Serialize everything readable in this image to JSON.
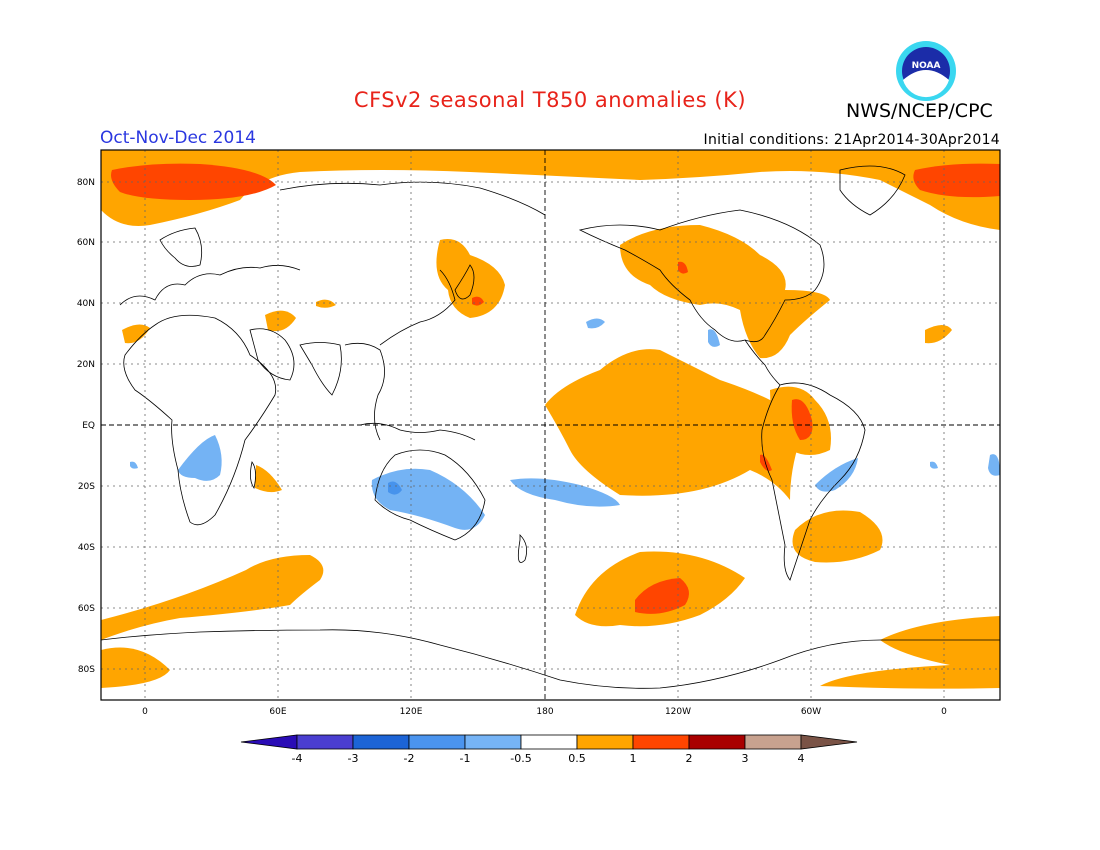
{
  "header": {
    "title": "CFSv2 seasonal T850 anomalies (K)",
    "organization": "NWS/NCEP/CPC",
    "logo_text": "NOAA",
    "period": "Oct-Nov-Dec 2014",
    "initial_conditions": "Initial conditions: 21Apr2014-30Apr2014"
  },
  "map": {
    "lat_labels": [
      "80N",
      "60N",
      "40N",
      "20N",
      "EQ",
      "20S",
      "40S",
      "60S",
      "80S"
    ],
    "lon_labels": [
      "0",
      "60E",
      "120E",
      "180",
      "120W",
      "60W",
      "0"
    ],
    "colors": {
      "land_outline": "#000000",
      "frame": "#000000",
      "pos_1": "#ffa500",
      "pos_2": "#ff4500",
      "neg_1": "#74b3f4",
      "neg_2": "#4793ec"
    }
  },
  "colorbar": {
    "labels": [
      "-4",
      "-3",
      "-2",
      "-1",
      "-0.5",
      "0.5",
      "1",
      "2",
      "3",
      "4"
    ],
    "colors": [
      "#2a0cb6",
      "#4a3ed0",
      "#1c64d6",
      "#4b94ee",
      "#76b4f6",
      "#ffffff",
      "#ffa500",
      "#ff4500",
      "#a90000",
      "#c8a28f",
      "#7a5346"
    ]
  }
}
